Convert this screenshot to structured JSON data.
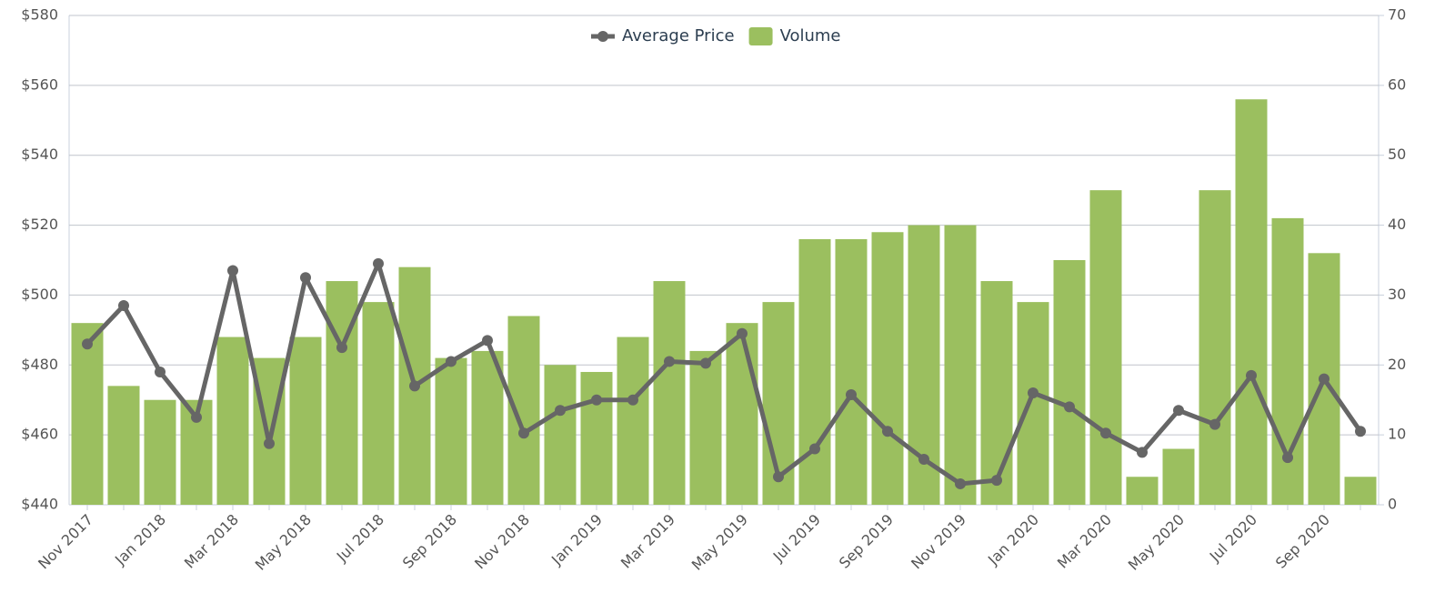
{
  "chart_data": {
    "type": "bar-line",
    "categories": [
      "Nov 2017",
      null,
      "Jan 2018",
      null,
      "Mar 2018",
      null,
      "May 2018",
      null,
      "Jul 2018",
      null,
      "Sep 2018",
      null,
      "Nov 2018",
      null,
      "Jan 2019",
      null,
      "Mar 2019",
      null,
      "May 2019",
      null,
      "Jul 2019",
      null,
      "Sep 2019",
      null,
      "Nov 2019",
      null,
      "Jan 2020",
      null,
      "Mar 2020",
      null,
      "May 2020",
      null,
      "Jul 2020",
      null,
      "Sep 2020",
      null
    ],
    "series": [
      {
        "name": "Average Price",
        "type": "line",
        "axis": "y",
        "color": "#666666",
        "values": [
          486,
          497,
          478,
          465,
          507,
          457.5,
          505,
          485,
          509,
          474,
          481,
          487,
          460.5,
          467,
          470,
          470,
          481,
          480.5,
          489,
          448,
          456,
          471.5,
          461,
          453,
          446,
          447,
          472,
          468,
          460.5,
          455,
          467,
          463,
          477,
          453.5,
          476,
          461
        ]
      },
      {
        "name": "Volume",
        "type": "bar",
        "axis": "y2",
        "color": "#9bbf5f",
        "values": [
          26,
          17,
          15,
          15,
          24,
          21,
          24,
          32,
          29,
          34,
          21,
          22,
          27,
          20,
          19,
          24,
          32,
          22,
          26,
          29,
          38,
          38,
          39,
          40,
          40,
          32,
          29,
          35,
          45,
          4,
          8,
          45,
          58,
          41,
          36,
          4
        ]
      }
    ],
    "ylim": [
      440,
      580
    ],
    "yticks": [
      {
        "value": 440,
        "label": "$440"
      },
      {
        "value": 460,
        "label": "$460"
      },
      {
        "value": 480,
        "label": "$480"
      },
      {
        "value": 500,
        "label": "$500"
      },
      {
        "value": 520,
        "label": "$520"
      },
      {
        "value": 540,
        "label": "$540"
      },
      {
        "value": 560,
        "label": "$560"
      },
      {
        "value": 580,
        "label": "$580"
      }
    ],
    "y2lim": [
      0,
      70
    ],
    "y2ticks": [
      0,
      10,
      20,
      30,
      40,
      50,
      60,
      70
    ],
    "grid": true,
    "legend": "top"
  }
}
